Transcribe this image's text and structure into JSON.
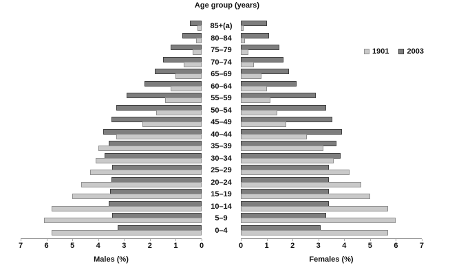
{
  "chart_data": {
    "type": "bar",
    "variant": "population-pyramid",
    "title": "Age group (years)",
    "xlabel_left": "Males (%)",
    "xlabel_right": "Females (%)",
    "axis": {
      "min": 0,
      "max": 7,
      "ticks": [
        0,
        1,
        2,
        3,
        4,
        5,
        6,
        7
      ]
    },
    "legend_position": "top-right",
    "age_groups_top_to_bottom": [
      "85+(a)",
      "80–84",
      "75–79",
      "70–74",
      "65–69",
      "60–64",
      "55–59",
      "50–54",
      "45–49",
      "40–44",
      "35–39",
      "30–34",
      "25–29",
      "20–24",
      "15–19",
      "10–14",
      "5–9",
      "0–4"
    ],
    "series": [
      {
        "name": "1901",
        "fill": "#c9c9c9",
        "border": "#8f8f8f",
        "males": [
          0.15,
          0.2,
          0.35,
          0.7,
          1.0,
          1.2,
          1.4,
          1.75,
          2.3,
          3.3,
          4.0,
          4.1,
          4.3,
          4.65,
          5.0,
          5.8,
          6.1,
          5.8
        ],
        "females": [
          0.1,
          0.15,
          0.3,
          0.5,
          0.8,
          1.0,
          1.15,
          1.4,
          1.75,
          2.55,
          3.2,
          3.6,
          4.2,
          4.65,
          5.0,
          5.7,
          6.0,
          5.7
        ]
      },
      {
        "name": "2003",
        "fill": "#7e7e7e",
        "border": "#404040",
        "males": [
          0.45,
          0.75,
          1.2,
          1.5,
          1.8,
          2.2,
          2.9,
          3.3,
          3.5,
          3.8,
          3.6,
          3.75,
          3.45,
          3.5,
          3.55,
          3.6,
          3.45,
          3.25
        ],
        "females": [
          1.0,
          1.1,
          1.5,
          1.65,
          1.85,
          2.15,
          2.9,
          3.3,
          3.55,
          3.9,
          3.7,
          3.85,
          3.4,
          3.4,
          3.4,
          3.4,
          3.3,
          3.1
        ]
      }
    ]
  }
}
